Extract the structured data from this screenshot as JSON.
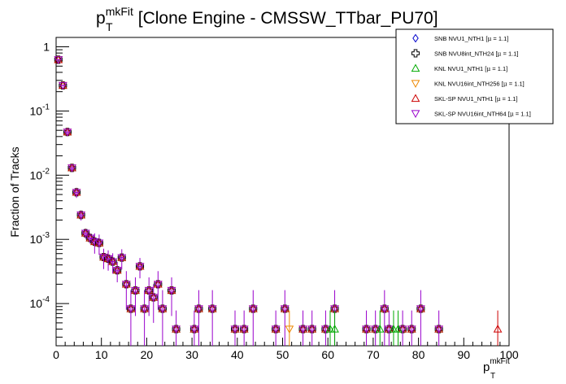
{
  "chart_data": {
    "type": "scatter",
    "title": {
      "main": "p",
      "sup": "mkFit",
      "sub": "T",
      "rest": " [Clone Engine - CMSSW_TTbar_PU70]"
    },
    "ylabel": "Fraction of Tracks",
    "xlabel": {
      "main": "p",
      "sup": "mkFit",
      "sub": "T"
    },
    "xlim": [
      0,
      100
    ],
    "ylim": [
      2.2e-05,
      1.4
    ],
    "y_scale": "log",
    "x_ticks": [
      "0",
      "10",
      "20",
      "30",
      "40",
      "50",
      "60",
      "70",
      "80",
      "90",
      "100"
    ],
    "y_ticks": [
      {
        "base": "10",
        "exp": "-4",
        "value": 0.0001
      },
      {
        "base": "10",
        "exp": "-3",
        "value": 0.001
      },
      {
        "base": "10",
        "exp": "-2",
        "value": 0.01
      },
      {
        "base": "10",
        "exp": "-1",
        "value": 0.1
      },
      {
        "base": "1",
        "exp": "",
        "value": 1
      }
    ],
    "grid": false,
    "legend_position": "top-right",
    "x": [
      0.5,
      1.5,
      2.5,
      3.5,
      4.5,
      5.5,
      6.5,
      7.5,
      8.5,
      9.5,
      10.5,
      11.5,
      12.5,
      13.5,
      14.5,
      15.5,
      16.5,
      17.5,
      18.5,
      19.5,
      20.5,
      21.5,
      22.5,
      23.5,
      25.5,
      26.5,
      30.5,
      31.5,
      34.5,
      39.5,
      41.5,
      43.5,
      48.5,
      50.5,
      54.5,
      56.5,
      59.5,
      61.5,
      68.5,
      70.5,
      72.5,
      73.5,
      76.5,
      78.5,
      80.5,
      84.5
    ],
    "y": [
      0.63,
      0.25,
      0.047,
      0.013,
      0.0054,
      0.0024,
      0.00125,
      0.00105,
      0.00092,
      0.00088,
      0.00053,
      0.0005,
      0.00045,
      0.00033,
      0.00052,
      0.0002,
      8.3e-05,
      0.00016,
      0.00038,
      8.3e-05,
      0.00016,
      0.000125,
      0.0002,
      8.3e-05,
      0.00016,
      4e-05,
      4e-05,
      8.3e-05,
      8.3e-05,
      4e-05,
      4e-05,
      8.3e-05,
      4e-05,
      8.3e-05,
      4e-05,
      4e-05,
      4e-05,
      8.3e-05,
      4e-05,
      4e-05,
      8.3e-05,
      4e-05,
      4e-05,
      4e-05,
      8.3e-05,
      4e-05
    ],
    "extra_points": [
      {
        "series": "KNL NVU16int_NTH256",
        "x": 51.5,
        "y": 4e-05
      },
      {
        "series": "KNL NVU1_NTH1",
        "x": 60.5,
        "y": 4e-05
      },
      {
        "series": "KNL NVU1_NTH1",
        "x": 61.5,
        "y": 4e-05
      },
      {
        "series": "KNL NVU1_NTH1",
        "x": 71.5,
        "y": 4e-05
      },
      {
        "series": "KNL NVU1_NTH1",
        "x": 74.5,
        "y": 4e-05
      },
      {
        "series": "KNL NVU1_NTH1",
        "x": 75.5,
        "y": 4e-05
      },
      {
        "series": "SKL-SP NVU1_NTH1",
        "x": 97.5,
        "y": 4e-05
      }
    ],
    "series": [
      {
        "name": "SNB NVU1_NTH1",
        "mu": "1.1",
        "color": "#0000cc",
        "marker": "diamond"
      },
      {
        "name": "SNB NVU8int_NTH24",
        "mu": "1.1",
        "color": "#000000",
        "marker": "open-cross"
      },
      {
        "name": "KNL NVU1_NTH1",
        "mu": "1.1",
        "color": "#00aa00",
        "marker": "triangle-up"
      },
      {
        "name": "KNL NVU16int_NTH256",
        "mu": "1.1",
        "color": "#ee8800",
        "marker": "triangle-down"
      },
      {
        "name": "SKL-SP NVU1_NTH1",
        "mu": "1.1",
        "color": "#cc0000",
        "marker": "triangle-up"
      },
      {
        "name": "SKL-SP NVU16int_NTH64",
        "mu": "1.1",
        "color": "#9900cc",
        "marker": "triangle-down"
      }
    ]
  }
}
